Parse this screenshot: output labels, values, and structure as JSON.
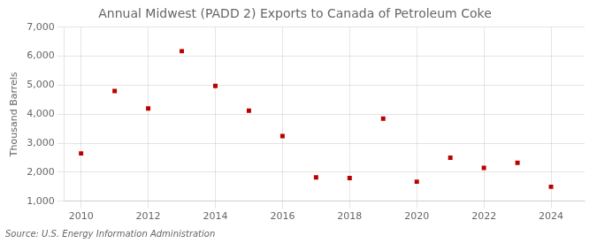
{
  "chart_data": {
    "type": "scatter",
    "title": "Annual Midwest (PADD 2) Exports to Canada of Petroleum Coke",
    "ylabel": "Thousand Barrels",
    "source": "Source: U.S. Energy Information Administration",
    "x": [
      2010,
      2011,
      2012,
      2013,
      2014,
      2015,
      2016,
      2017,
      2018,
      2019,
      2020,
      2021,
      2022,
      2023,
      2024
    ],
    "values": [
      2650,
      4800,
      4200,
      6175,
      4975,
      4125,
      3250,
      1825,
      1800,
      3850,
      1675,
      2500,
      2150,
      2325,
      1500
    ],
    "color": "#bb0000",
    "marker": "square",
    "xlim": [
      2009.5,
      2025
    ],
    "xticks": [
      2010,
      2012,
      2014,
      2016,
      2018,
      2020,
      2022,
      2024
    ],
    "ylim": [
      1000,
      7000
    ],
    "yticks": [
      {
        "value": 1000,
        "label": "1,000"
      },
      {
        "value": 2000,
        "label": "2,000"
      },
      {
        "value": 3000,
        "label": "3,000"
      },
      {
        "value": 4000,
        "label": "4,000"
      },
      {
        "value": 5000,
        "label": "5,000"
      },
      {
        "value": 6000,
        "label": "6,000"
      },
      {
        "value": 7000,
        "label": "7,000"
      }
    ],
    "grid": true
  }
}
